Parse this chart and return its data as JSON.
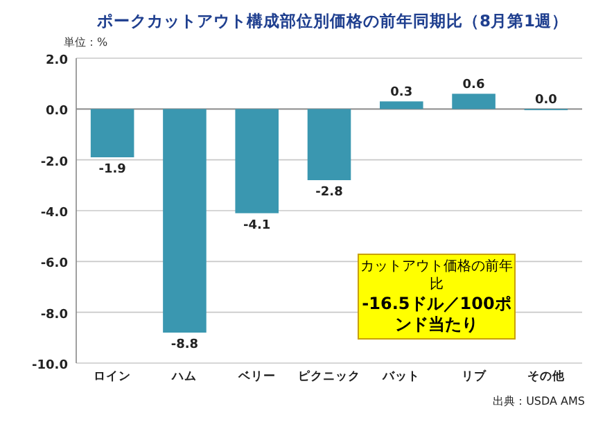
{
  "chart_data": {
    "type": "bar",
    "title": "ポークカットアウト構成部位別価格の前年同期比（8月第1週）",
    "ylabel": "単位：%",
    "categories": [
      "ロイン",
      "ハム",
      "ベリー",
      "ピクニック",
      "バット",
      "リブ",
      "その他"
    ],
    "values": [
      -1.9,
      -8.8,
      -4.1,
      -2.8,
      0.3,
      0.6,
      0.0
    ],
    "value_labels": [
      "-1.9",
      "-8.8",
      "-4.1",
      "-2.8",
      "0.3",
      "0.6",
      "0.0"
    ],
    "color": "#3a97b0",
    "ylim": [
      -10,
      2
    ],
    "yticks": [
      {
        "value": 2,
        "label": "2.0"
      },
      {
        "value": 0,
        "label": "0.0"
      },
      {
        "value": -2,
        "label": "-2.0"
      },
      {
        "value": -4,
        "label": "-4.0"
      },
      {
        "value": -6,
        "label": "-6.0"
      },
      {
        "value": -8,
        "label": "-8.0"
      },
      {
        "value": -10,
        "label": "-10.0"
      }
    ],
    "grid": "y",
    "annotations": [
      "カットアウト価格の前年比",
      "-16.5ドル／100ポンド当たり",
      "出典：USDA AMS"
    ]
  }
}
